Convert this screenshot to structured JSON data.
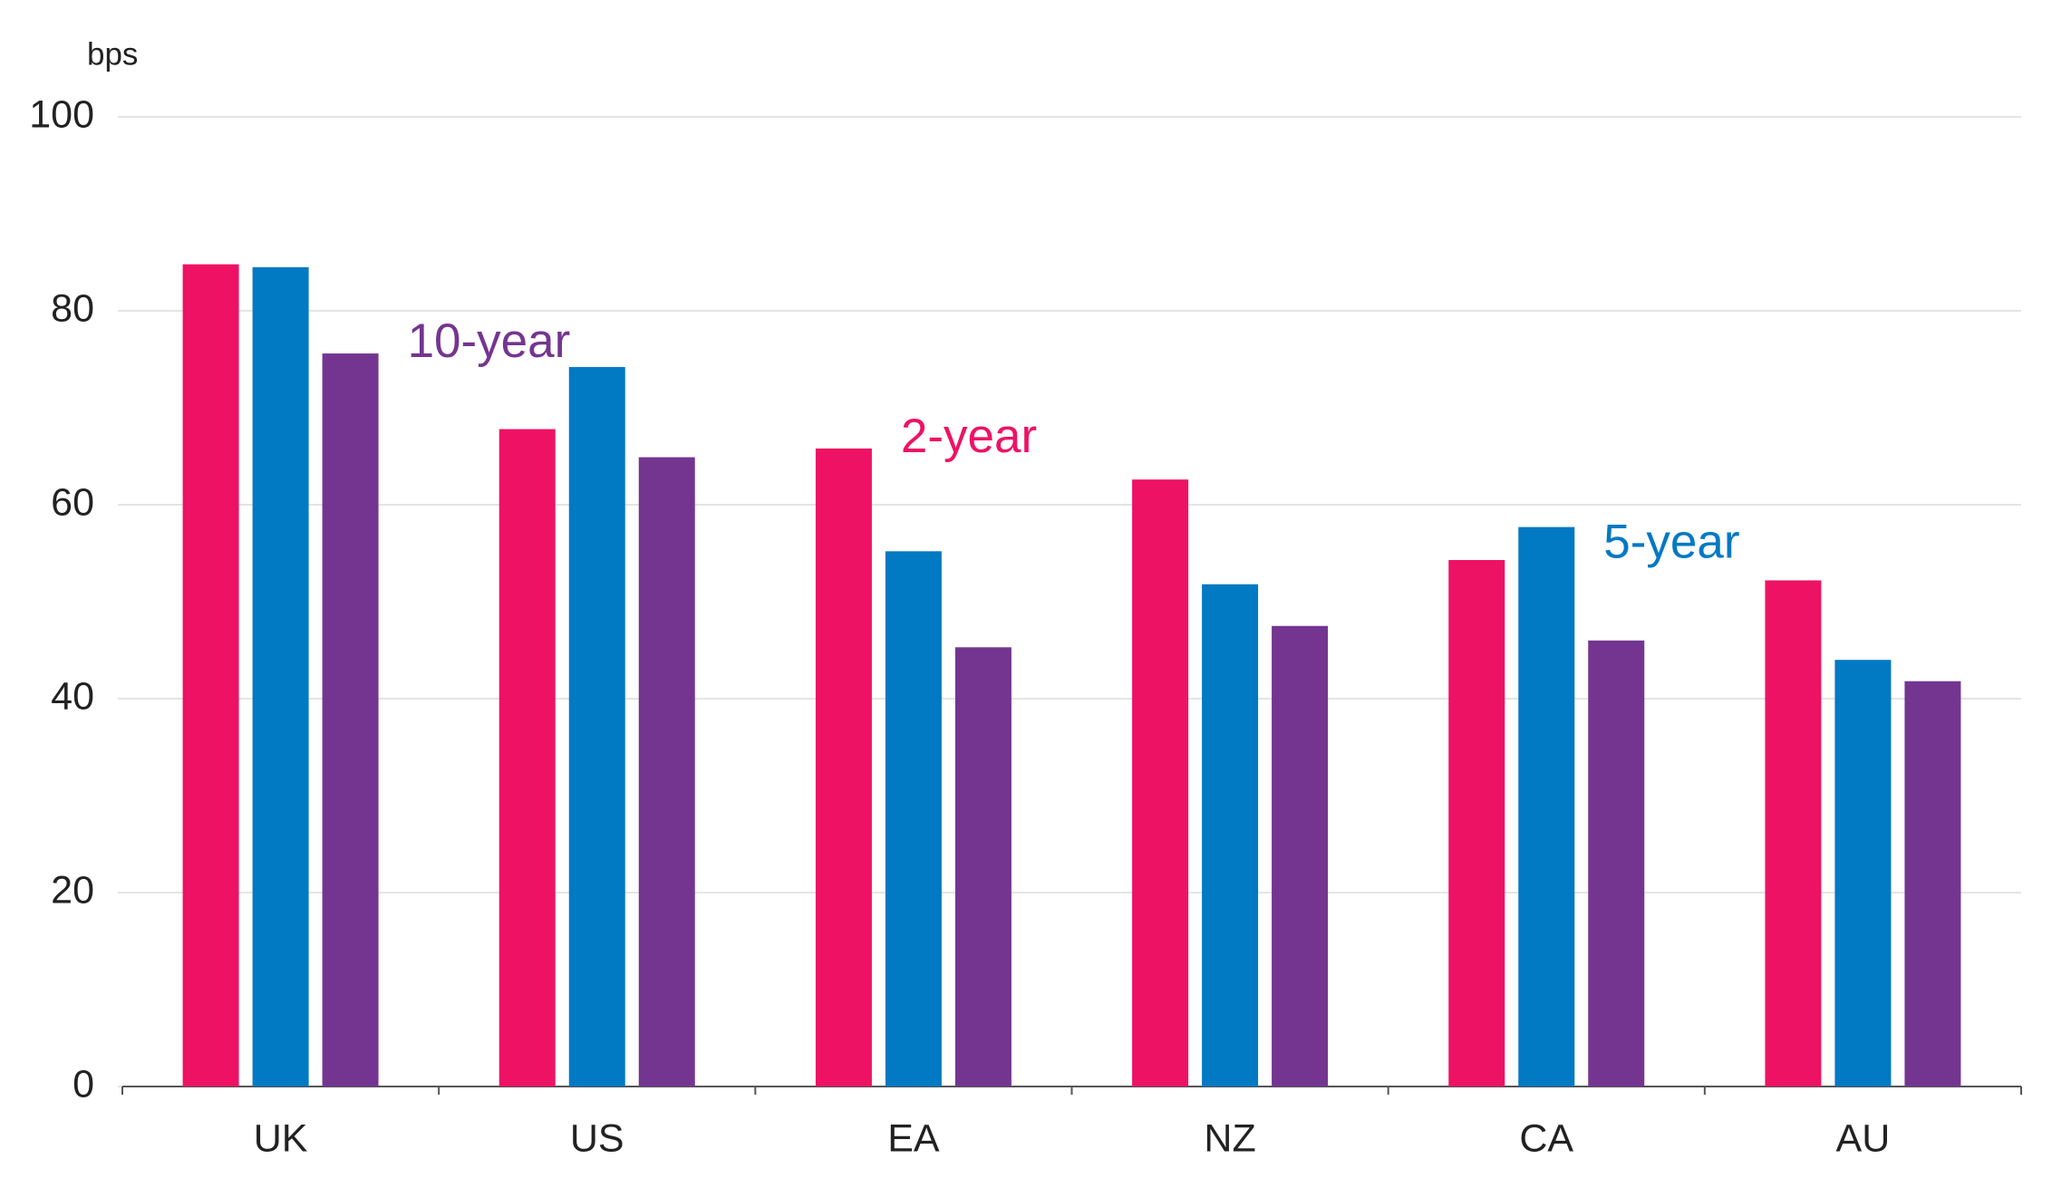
{
  "chart_data": {
    "type": "bar",
    "y_label": "bps",
    "categories": [
      "UK",
      "US",
      "EA",
      "NZ",
      "CA",
      "AU"
    ],
    "series": [
      {
        "name": "2-year",
        "color": "#ee1265",
        "values": [
          84.8,
          67.8,
          65.8,
          62.6,
          54.3,
          52.2
        ]
      },
      {
        "name": "5-year",
        "color": "#0279c3",
        "values": [
          84.5,
          74.2,
          55.2,
          51.8,
          57.7,
          44.0
        ]
      },
      {
        "name": "10-year",
        "color": "#743591",
        "values": [
          75.6,
          64.9,
          45.3,
          47.5,
          46.0,
          41.8
        ]
      }
    ],
    "ylim": [
      0,
      100
    ],
    "yticks": [
      0,
      20,
      40,
      60,
      80,
      100
    ],
    "grid": true
  }
}
